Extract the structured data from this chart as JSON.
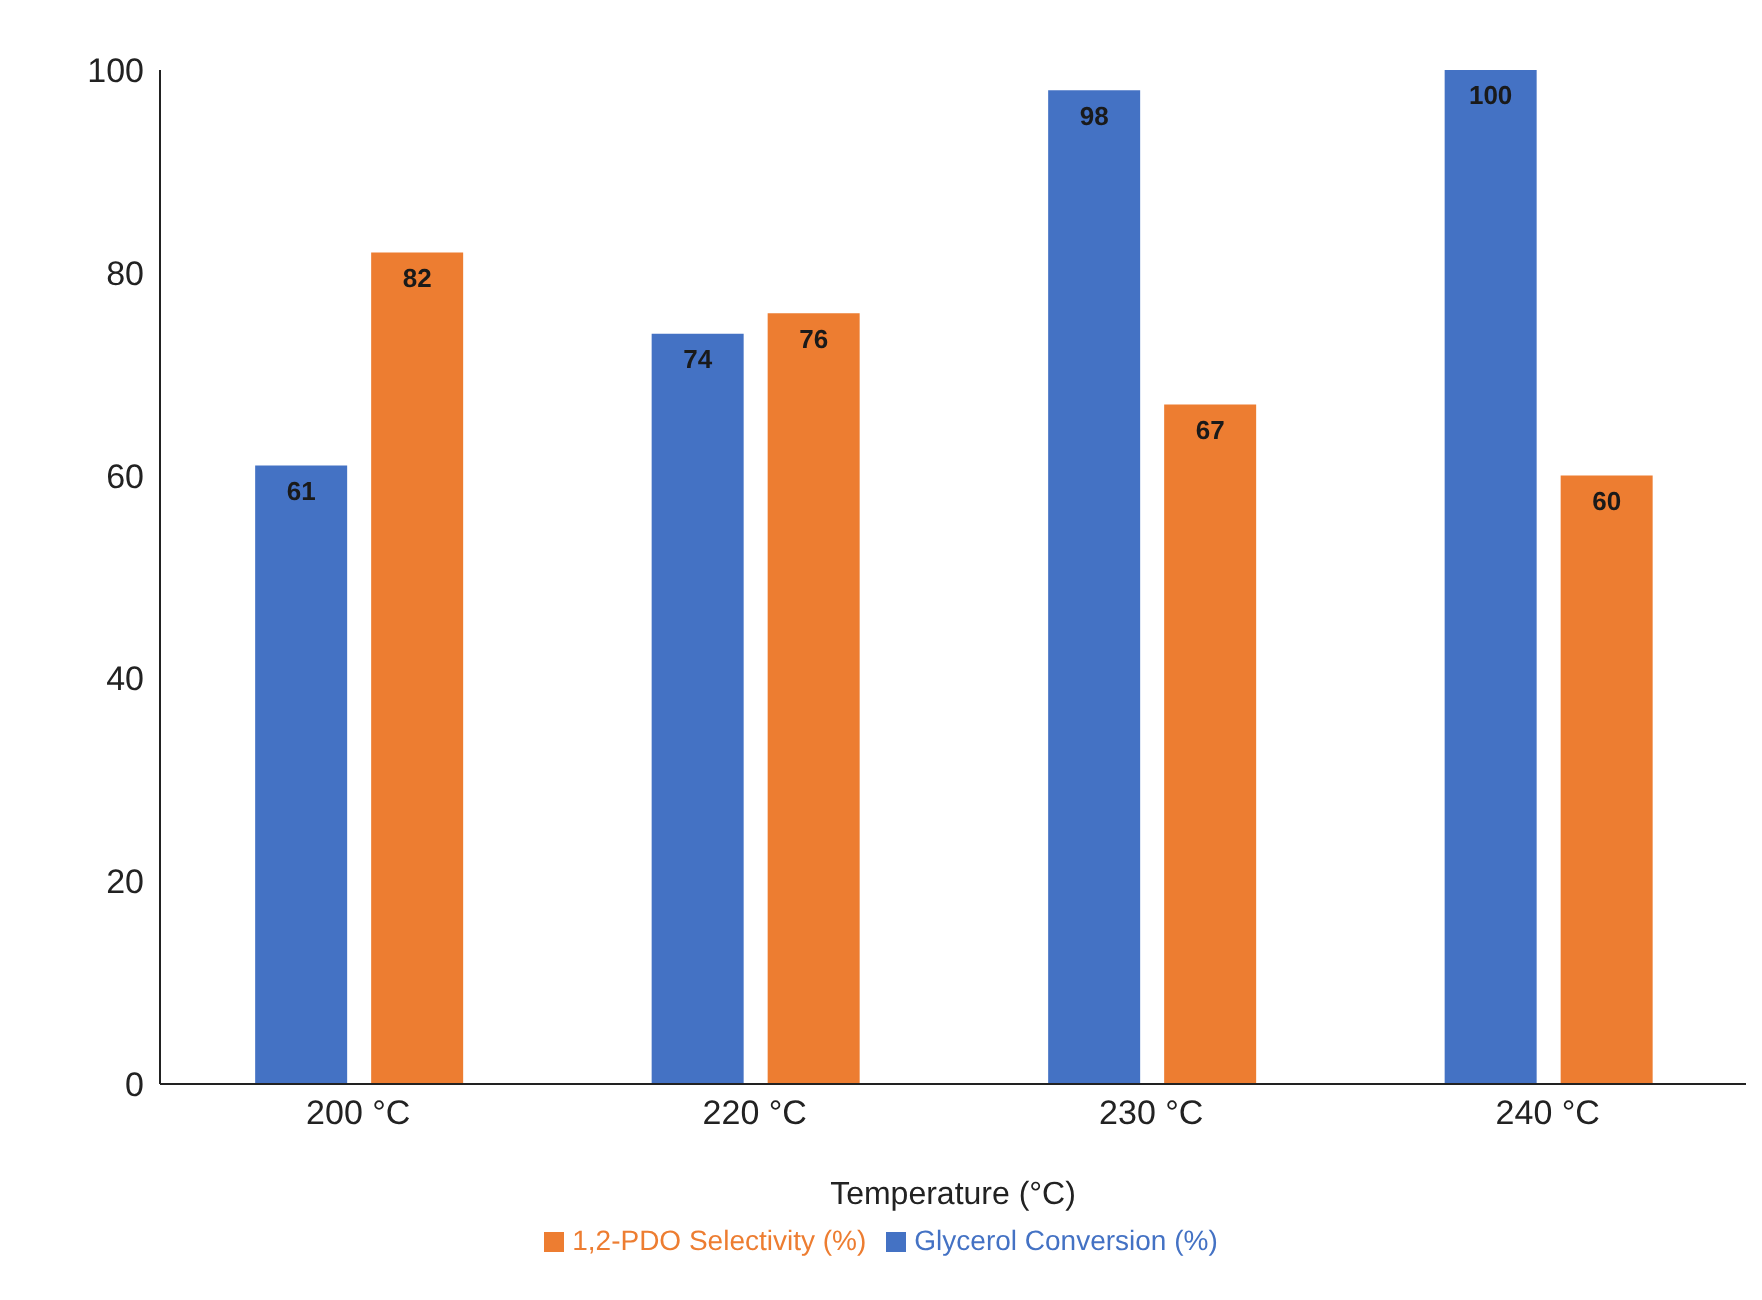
{
  "chart_data": {
    "type": "bar",
    "xlabel": "Temperature (°C)",
    "categories": [
      "200 °C",
      "220 °C",
      "230 °C",
      "240 °C"
    ],
    "series": [
      {
        "name": "Glycerol Conversion (%)",
        "color": "#4472c4",
        "values": [
          61,
          74,
          98,
          100
        ]
      },
      {
        "name": "1,2-PDO Selectivity (%)",
        "color": "#ed7d31",
        "values": [
          82,
          76,
          67,
          60
        ]
      }
    ],
    "ylim": [
      0,
      100
    ],
    "yticks": [
      0,
      20,
      40,
      60,
      80,
      100
    ],
    "grid": false,
    "legend": "bottom",
    "data_labels": true
  }
}
